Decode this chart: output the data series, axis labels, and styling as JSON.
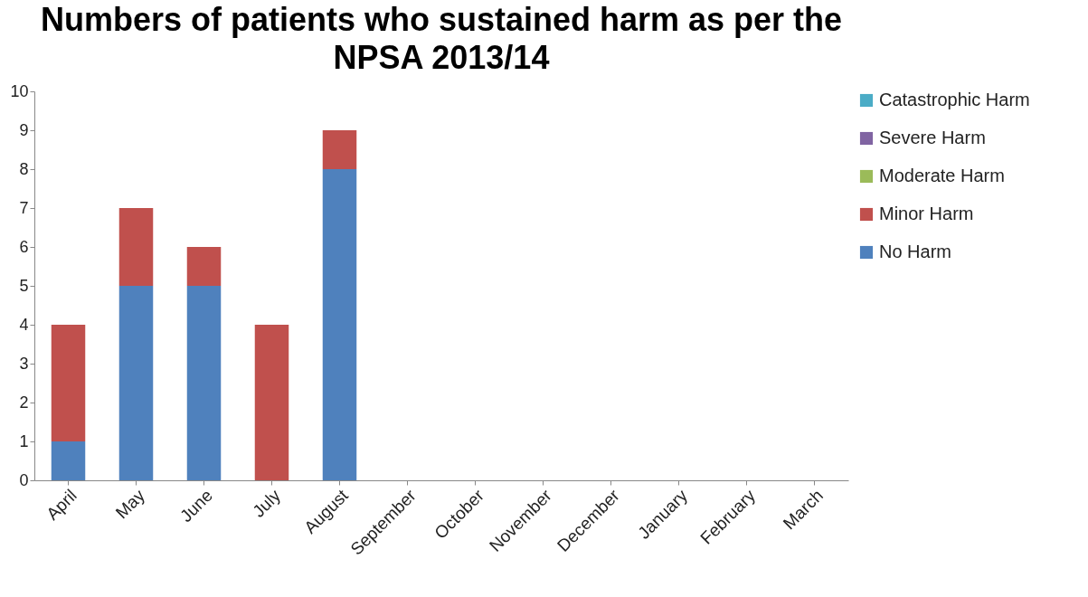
{
  "chart_data": {
    "type": "bar",
    "title": "Numbers of patients who sustained harm as per the NPSA 2013/14",
    "categories": [
      "April",
      "May",
      "June",
      "July",
      "August",
      "September",
      "October",
      "November",
      "December",
      "January",
      "February",
      "March"
    ],
    "series": [
      {
        "name": "No Harm",
        "color": "#4f81bd",
        "values": [
          1,
          5,
          5,
          0,
          8,
          null,
          null,
          null,
          null,
          null,
          null,
          null
        ]
      },
      {
        "name": "Minor Harm",
        "color": "#c0504d",
        "values": [
          3,
          2,
          1,
          4,
          1,
          null,
          null,
          null,
          null,
          null,
          null,
          null
        ]
      },
      {
        "name": "Moderate Harm",
        "color": "#9bbb59",
        "values": [
          0,
          0,
          0,
          0,
          0,
          null,
          null,
          null,
          null,
          null,
          null,
          null
        ]
      },
      {
        "name": "Severe Harm",
        "color": "#8064a2",
        "values": [
          0,
          0,
          0,
          0,
          0,
          null,
          null,
          null,
          null,
          null,
          null,
          null
        ]
      },
      {
        "name": "Catastrophic Harm",
        "color": "#4bacc6",
        "values": [
          0,
          0,
          0,
          0,
          0,
          null,
          null,
          null,
          null,
          null,
          null,
          null
        ]
      }
    ],
    "stacked": true,
    "ylim": [
      0,
      10
    ],
    "yticks": [
      0,
      1,
      2,
      3,
      4,
      5,
      6,
      7,
      8,
      9,
      10
    ],
    "grid": false,
    "legend": "right"
  }
}
